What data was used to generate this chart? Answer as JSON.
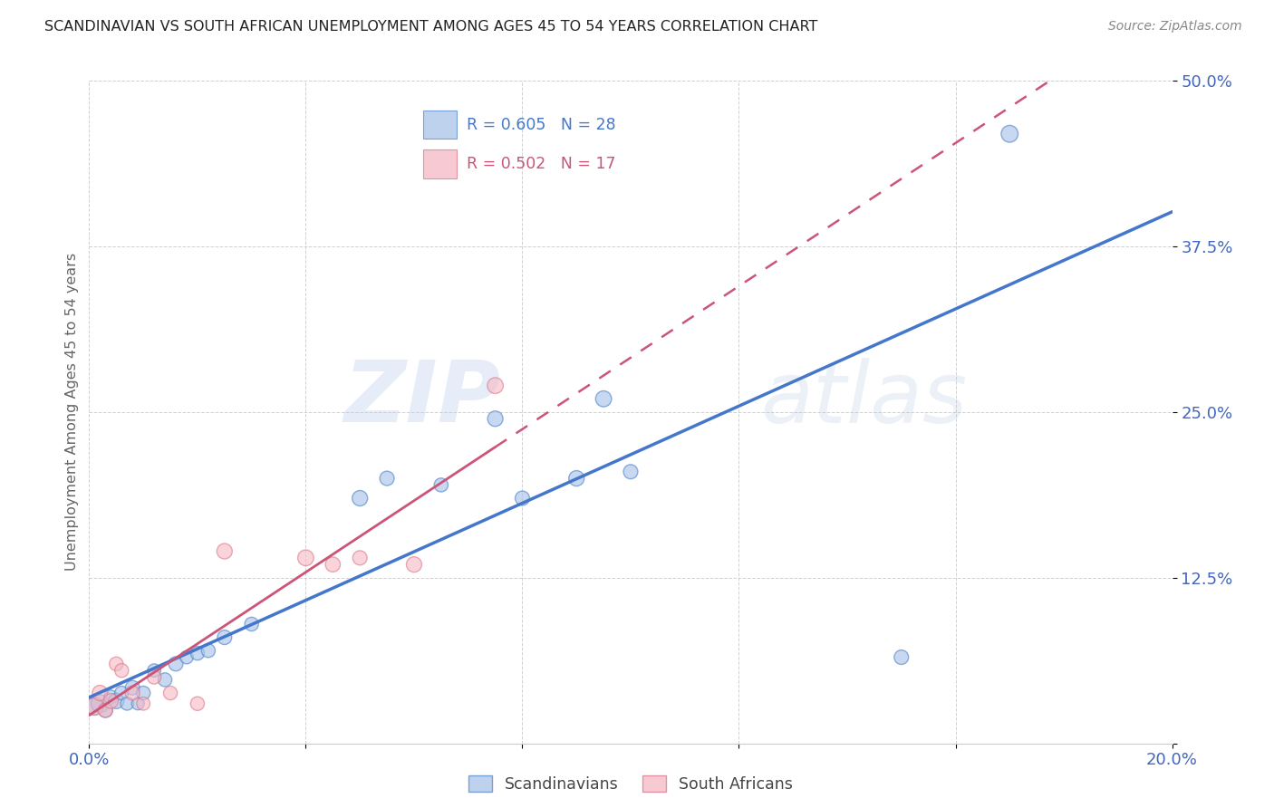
{
  "title": "SCANDINAVIAN VS SOUTH AFRICAN UNEMPLOYMENT AMONG AGES 45 TO 54 YEARS CORRELATION CHART",
  "source": "Source: ZipAtlas.com",
  "ylabel": "Unemployment Among Ages 45 to 54 years",
  "xlim": [
    0.0,
    0.2
  ],
  "ylim": [
    0.0,
    0.5
  ],
  "xticks": [
    0.0,
    0.04,
    0.08,
    0.12,
    0.16,
    0.2
  ],
  "yticks": [
    0.0,
    0.125,
    0.25,
    0.375,
    0.5
  ],
  "ytick_labels": [
    "",
    "12.5%",
    "25.0%",
    "37.5%",
    "50.0%"
  ],
  "xtick_labels": [
    "0.0%",
    "",
    "",
    "",
    "",
    "20.0%"
  ],
  "blue_R": "R = 0.605",
  "blue_N": "N = 28",
  "pink_R": "R = 0.502",
  "pink_N": "N = 17",
  "blue_label": "Scandinavians",
  "pink_label": "South Africans",
  "background_color": "#ffffff",
  "blue_fill_color": "#aac4e8",
  "pink_fill_color": "#f5b8c4",
  "blue_edge_color": "#5588cc",
  "pink_edge_color": "#dd7788",
  "blue_line_color": "#4477cc",
  "pink_line_color": "#cc5577",
  "axis_tick_color": "#4466bb",
  "grid_color": "#cccccc",
  "title_color": "#222222",
  "watermark_color": "#c8d8ee",
  "scandinavians_x": [
    0.001,
    0.002,
    0.003,
    0.004,
    0.005,
    0.006,
    0.007,
    0.008,
    0.009,
    0.01,
    0.012,
    0.014,
    0.016,
    0.018,
    0.02,
    0.022,
    0.025,
    0.03,
    0.05,
    0.055,
    0.065,
    0.075,
    0.08,
    0.09,
    0.095,
    0.1,
    0.15,
    0.17
  ],
  "scandinavians_y": [
    0.028,
    0.03,
    0.025,
    0.035,
    0.032,
    0.038,
    0.03,
    0.042,
    0.03,
    0.038,
    0.055,
    0.048,
    0.06,
    0.065,
    0.068,
    0.07,
    0.08,
    0.09,
    0.185,
    0.2,
    0.195,
    0.245,
    0.185,
    0.2,
    0.26,
    0.205,
    0.065,
    0.46
  ],
  "scandinavians_size": [
    180,
    200,
    130,
    120,
    150,
    120,
    110,
    130,
    100,
    120,
    110,
    120,
    130,
    110,
    120,
    120,
    130,
    120,
    150,
    130,
    120,
    150,
    130,
    150,
    160,
    130,
    130,
    180
  ],
  "south_africans_x": [
    0.001,
    0.002,
    0.003,
    0.004,
    0.005,
    0.006,
    0.008,
    0.01,
    0.012,
    0.015,
    0.02,
    0.025,
    0.04,
    0.045,
    0.05,
    0.06,
    0.075
  ],
  "south_africans_y": [
    0.028,
    0.038,
    0.025,
    0.032,
    0.06,
    0.055,
    0.038,
    0.03,
    0.05,
    0.038,
    0.03,
    0.145,
    0.14,
    0.135,
    0.14,
    0.135,
    0.27
  ],
  "south_africans_size": [
    200,
    150,
    130,
    140,
    120,
    120,
    130,
    110,
    120,
    120,
    120,
    150,
    160,
    140,
    130,
    150,
    160
  ],
  "pink_line_x_solid_end": 0.075,
  "pink_line_x_dash_end": 0.2,
  "blue_line_x_start": 0.0,
  "blue_line_x_end": 0.2
}
